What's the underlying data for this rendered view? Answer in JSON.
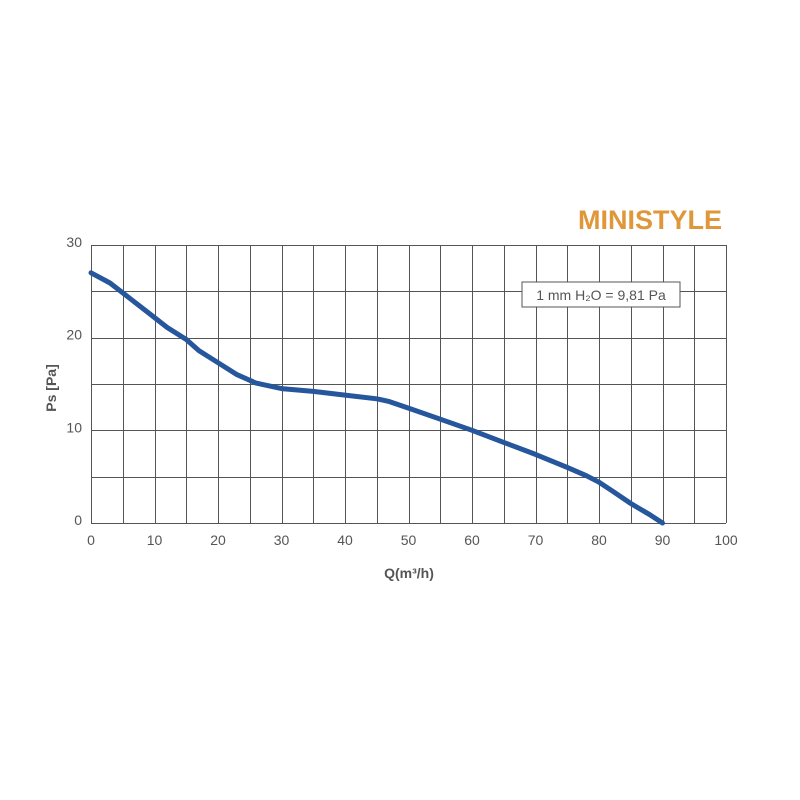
{
  "colors": {
    "title": "#e0973a",
    "grid": "#555555",
    "series": "#26569c",
    "text": "#555555"
  },
  "chart_data": {
    "type": "line",
    "title": "MINISTYLE",
    "xlabel": "Q(m³/h)",
    "ylabel": "Ps [Pa]",
    "xlim": [
      0,
      100
    ],
    "ylim": [
      0,
      30
    ],
    "xticks": [
      0,
      10,
      20,
      30,
      40,
      50,
      60,
      70,
      80,
      90,
      100
    ],
    "yticks": [
      0,
      10,
      20,
      30
    ],
    "grid": true,
    "annotation": "1 mm H₂O = 9,81 Pa",
    "series": [
      {
        "x": [
          0,
          3,
          6,
          9,
          12,
          15,
          17,
          20,
          23,
          26,
          30,
          35,
          40,
          45,
          47,
          50,
          55,
          60,
          65,
          70,
          75,
          78,
          80,
          82,
          85,
          88,
          90
        ],
        "values": [
          27,
          25.9,
          24.3,
          22.7,
          21.1,
          19.8,
          18.6,
          17.3,
          16,
          15.1,
          14.5,
          14.2,
          13.8,
          13.4,
          13.1,
          12.4,
          11.2,
          10,
          8.7,
          7.4,
          6,
          5.1,
          4.4,
          3.5,
          2.1,
          0.9,
          0
        ]
      }
    ]
  }
}
